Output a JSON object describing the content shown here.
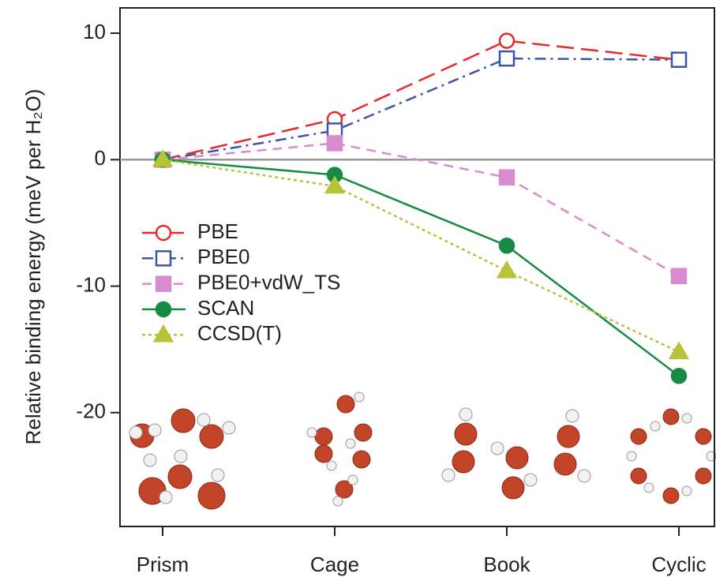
{
  "chart_data": {
    "type": "line",
    "y_label": "Relative binding energy (meV per H₂O)",
    "categories": [
      "Prism",
      "Cage",
      "Book",
      "Cyclic"
    ],
    "ylim": [
      -29,
      12
    ],
    "yticks": [
      -20,
      -10,
      0,
      10
    ],
    "hline": 0,
    "series": [
      {
        "name": "PBE",
        "color": "#e62a2e",
        "dash": "22,9",
        "marker": "open-circle",
        "values": [
          0,
          3.2,
          9.4,
          7.9
        ]
      },
      {
        "name": "PBE0",
        "color": "#3f56a6",
        "dash": "14,6,3,6",
        "marker": "open-square",
        "values": [
          0,
          2.3,
          8.0,
          7.9
        ]
      },
      {
        "name": "PBE0+vdW_TS",
        "color": "#d98ccd",
        "dash": "12,8",
        "marker": "square",
        "values": [
          0,
          1.3,
          -1.4,
          -9.2
        ]
      },
      {
        "name": "SCAN",
        "color": "#178b44",
        "dash": "",
        "marker": "circle",
        "values": [
          0,
          -1.2,
          -6.8,
          -17.1
        ]
      },
      {
        "name": "CCSD(T)",
        "color": "#b7c43a",
        "dash": "4,4",
        "marker": "triangle",
        "values": [
          0,
          -2.1,
          -8.8,
          -15.2
        ]
      }
    ]
  }
}
